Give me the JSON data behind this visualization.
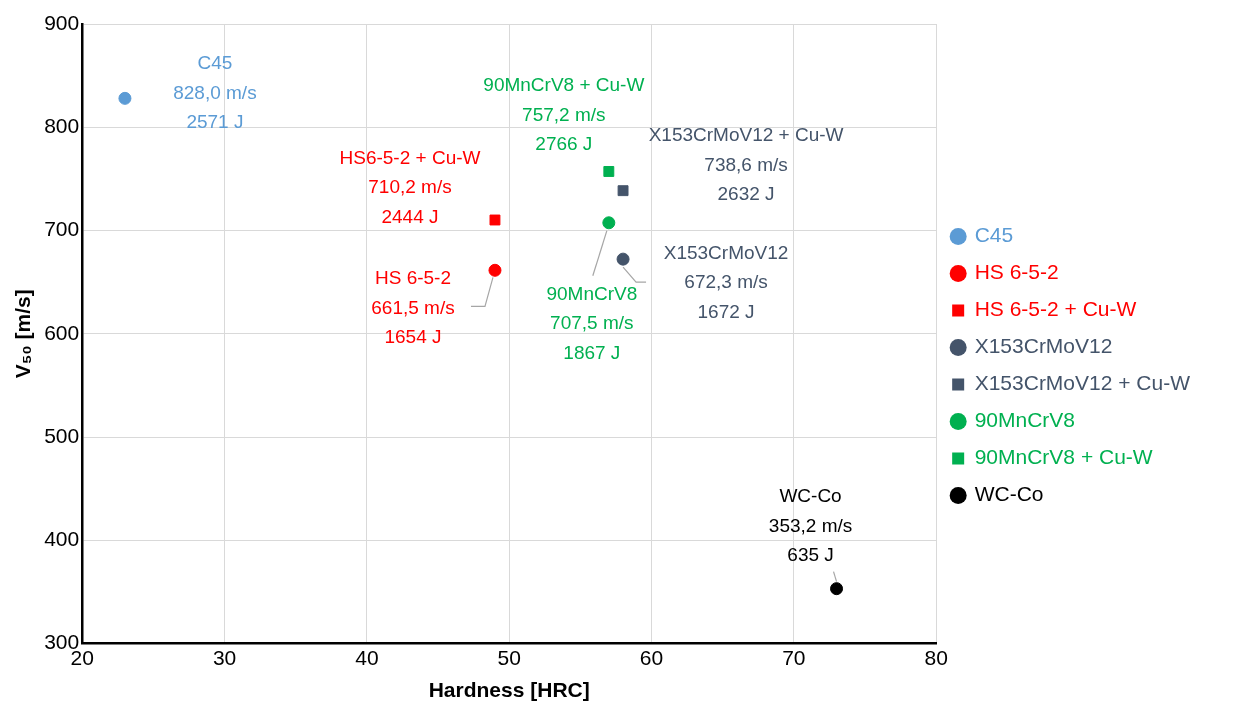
{
  "chart_data": {
    "type": "scatter",
    "xlabel": "Hardness [HRC]",
    "ylabel": "V₅₀ [m/s]",
    "xlim": [
      20,
      80
    ],
    "xticks": [
      20,
      30,
      40,
      50,
      60,
      70,
      80
    ],
    "ylim": [
      300,
      900
    ],
    "yticks": [
      300,
      400,
      500,
      600,
      700,
      800,
      900
    ],
    "grid": true,
    "legend": "right",
    "series": [
      {
        "name": "C45",
        "color": "#5b9bd5",
        "marker": "circle",
        "x": [
          23
        ],
        "values": [
          828.0
        ]
      },
      {
        "name": "HS 6-5-2",
        "color": "#ff0000",
        "marker": "circle",
        "x": [
          49
        ],
        "values": [
          661.5
        ]
      },
      {
        "name": "HS 6-5-2 + Cu-W",
        "color": "#ff0000",
        "marker": "square",
        "x": [
          49
        ],
        "values": [
          710.2
        ]
      },
      {
        "name": "X153CrMoV12",
        "color": "#44546a",
        "marker": "circle",
        "x": [
          58
        ],
        "values": [
          672.3
        ]
      },
      {
        "name": "X153CrMoV12 + Cu-W",
        "color": "#44546a",
        "marker": "square",
        "x": [
          58
        ],
        "values": [
          738.6
        ]
      },
      {
        "name": "90MnCrV8",
        "color": "#00b050",
        "marker": "circle",
        "x": [
          57
        ],
        "values": [
          707.5
        ]
      },
      {
        "name": "90MnCrV8 + Cu-W",
        "color": "#00b050",
        "marker": "square",
        "x": [
          57
        ],
        "values": [
          757.2
        ]
      },
      {
        "name": "WC-Co",
        "color": "#000000",
        "marker": "circle",
        "x": [
          73
        ],
        "values": [
          353.2
        ]
      }
    ],
    "annotations": [
      {
        "text": "C45\n828,0 m/s\n2571 J",
        "x": 23,
        "y": 828.0
      },
      {
        "text": "HS 6-5-2\n661,5 m/s\n1654 J",
        "x": 49,
        "y": 661.5
      },
      {
        "text": "HS6-5-2 + Cu-W\n710,2 m/s\n2444 J",
        "x": 49,
        "y": 710.2
      },
      {
        "text": "X153CrMoV12\n672,3 m/s\n1672 J",
        "x": 58,
        "y": 672.3
      },
      {
        "text": "X153CrMoV12 + Cu-W\n738,6 m/s\n2632 J",
        "x": 58,
        "y": 738.6
      },
      {
        "text": "90MnCrV8\n707,5 m/s\n1867 J",
        "x": 57,
        "y": 707.5
      },
      {
        "text": "90MnCrV8 + Cu-W\n757,2 m/s\n2766 J",
        "x": 57,
        "y": 757.2
      },
      {
        "text": "WC-Co\n353,2 m/s\n635 J",
        "x": 73,
        "y": 353.2
      }
    ]
  }
}
